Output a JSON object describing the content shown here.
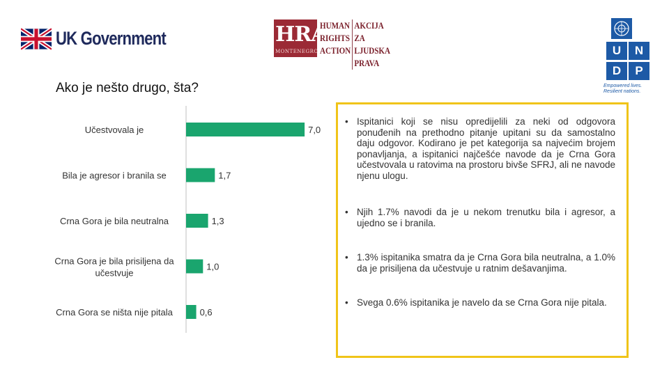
{
  "header": {
    "uk_logo_text": "UK Government",
    "hra": {
      "letters": "HRA",
      "sub": "MONTENEGRO",
      "col1": [
        "HUMAN",
        "RIGHTS",
        "ACTION"
      ],
      "col2": [
        "AKCIJA ZA",
        "LJUDSKA",
        "PRAVA"
      ]
    },
    "undp": {
      "letters": [
        "U",
        "N",
        "D",
        "P"
      ],
      "tagline": [
        "Empowered lives.",
        "Resilient nations."
      ]
    }
  },
  "title": "Ako je nešto drugo, šta?",
  "chart_data": {
    "type": "bar",
    "orientation": "horizontal",
    "categories": [
      "Učestvovala je",
      "Bila je agresor i branila se",
      "Crna Gora je bila neutralna",
      "Crna Gora je bila prisiljena da učestvuje",
      "Crna Gora se ništa nije pitala"
    ],
    "category_lines": [
      [
        "Učestvovala je"
      ],
      [
        "Bila je agresor i branila se"
      ],
      [
        "Crna Gora je bila neutralna"
      ],
      [
        "Crna Gora je bila prisiljena da",
        "učestvuje"
      ],
      [
        "Crna Gora se ništa nije pitala"
      ]
    ],
    "values": [
      7.0,
      1.7,
      1.3,
      1.0,
      0.6
    ],
    "value_labels": [
      "7,0",
      "1,7",
      "1,3",
      "1,0",
      "0,6"
    ],
    "bar_color": "#1aa56e",
    "grid": false,
    "legend": "none"
  },
  "notes": [
    "Ispitanici koji se nisu opredijelili za neki od odgovora ponuđenih na prethodno pitanje upitani su da samostalno daju odgovor. Kodirano je pet kategorija sa najvećim brojem ponavljanja, a ispitanici najčešće navode da je Crna Gora učestvovala u ratovima na prostoru bivše SFRJ, ali ne navode njenu ulogu.",
    "Njih 1.7% navodi da je u nekom trenutku bila i agresor, a ujedno se i branila.",
    "1.3% ispitanika smatra da je Crna Gora bila neutralna, a 1.0% da je prisiljena da učestvuje u ratnim dešavanjima.",
    "Svega 0.6% ispitanika je navelo da se Crna Gora nije pitala."
  ],
  "bullet_symbol": "•",
  "colors": {
    "panel_border": "#f0c419",
    "bar": "#1aa56e",
    "axis": "#bfbfbf"
  }
}
